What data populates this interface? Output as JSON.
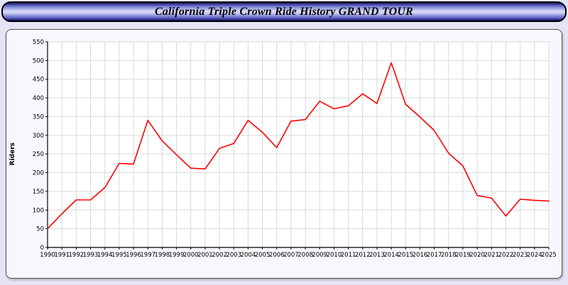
{
  "header": {
    "title": "California Triple Crown Ride History GRAND TOUR"
  },
  "chart_data": {
    "type": "line",
    "title": "California Triple Crown Ride History GRAND TOUR",
    "xlabel": "",
    "ylabel": "Riders",
    "ylim": [
      0,
      550
    ],
    "ytick_step": 50,
    "grid": true,
    "legend": "none",
    "line_color": "#ff0000",
    "categories": [
      1990,
      1991,
      1992,
      1993,
      1994,
      1995,
      1996,
      1997,
      1998,
      1999,
      2000,
      2001,
      2002,
      2003,
      2004,
      2005,
      2006,
      2007,
      2008,
      2009,
      2010,
      2011,
      2012,
      2013,
      2014,
      2015,
      2016,
      2017,
      2018,
      2019,
      2020,
      2021,
      2022,
      2023,
      2024,
      2025
    ],
    "values": [
      50,
      90,
      127,
      127,
      160,
      225,
      223,
      340,
      285,
      248,
      212,
      210,
      265,
      278,
      340,
      308,
      267,
      338,
      342,
      391,
      371,
      379,
      411,
      385,
      494,
      383,
      349,
      313,
      252,
      218,
      139,
      132,
      84,
      129,
      126,
      124
    ]
  },
  "colors": {
    "page_background": "#e4e4f4",
    "panel_background": "#f7f7fd",
    "plot_background": "#ffffff",
    "gridline": "#d9d9d9",
    "axis": "#000000",
    "line": "#ff0000",
    "title_bar_dark": "#14146a",
    "title_bar_light": "#dcdef8"
  }
}
